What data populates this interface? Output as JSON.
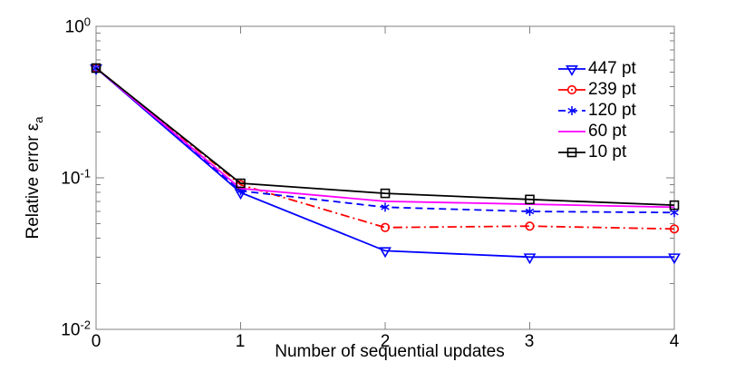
{
  "figure": {
    "background": "#ffffff",
    "axis_color": "#808080",
    "text_color": "#000000"
  },
  "chart_data": {
    "type": "line",
    "title": "",
    "xlabel": "Number of sequential updates",
    "ylabel": "Relative error ε",
    "ylabel_subscript": "a",
    "xscale": "linear",
    "yscale": "log",
    "xlim": [
      0,
      4
    ],
    "ylim": [
      0.01,
      1
    ],
    "grid": false,
    "xticks": [
      0,
      1,
      2,
      3,
      4
    ],
    "xtick_labels": [
      "0",
      "1",
      "2",
      "3",
      "4"
    ],
    "ytick_labels": [
      {
        "base": "10",
        "exp": "0"
      },
      {
        "base": "10",
        "exp": "-1"
      },
      {
        "base": "10",
        "exp": "-2"
      }
    ],
    "legend": {
      "position": "upper-right",
      "box": false
    },
    "x": [
      0,
      1,
      2,
      3,
      4
    ],
    "series": [
      {
        "name": "447 pt",
        "color": "#0000ff",
        "line": "solid",
        "marker": "triangle-down",
        "values": [
          0.53,
          0.08,
          0.033,
          0.03,
          0.03
        ]
      },
      {
        "name": "239 pt",
        "color": "#ff0000",
        "line": "dash-dot",
        "marker": "circle",
        "values": [
          0.53,
          0.09,
          0.047,
          0.048,
          0.046
        ]
      },
      {
        "name": "120 pt",
        "color": "#0000ff",
        "line": "dashed",
        "marker": "asterisk",
        "values": [
          0.53,
          0.082,
          0.064,
          0.06,
          0.059
        ]
      },
      {
        "name": "60 pt",
        "color": "#ff00ff",
        "line": "solid",
        "marker": "none",
        "values": [
          0.53,
          0.085,
          0.07,
          0.067,
          0.064
        ]
      },
      {
        "name": "10 pt",
        "color": "#000000",
        "line": "solid",
        "marker": "square",
        "values": [
          0.53,
          0.092,
          0.079,
          0.072,
          0.066
        ]
      }
    ]
  }
}
